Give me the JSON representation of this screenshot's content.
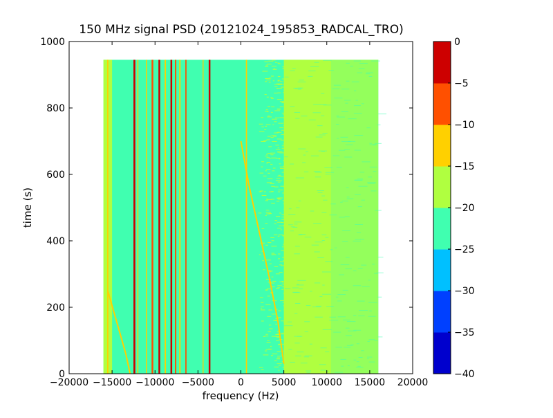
{
  "chart_data": {
    "type": "heatmap",
    "title": "150 MHz signal PSD (20121024_195853_RADCAL_TRO)",
    "xlabel": "frequency (Hz)",
    "ylabel": "time (s)",
    "xlim": [
      -20000,
      20000
    ],
    "ylim": [
      0,
      1000
    ],
    "xticks": [
      -20000,
      -15000,
      -10000,
      -5000,
      0,
      5000,
      10000,
      15000,
      20000
    ],
    "yticks": [
      0,
      200,
      400,
      600,
      800,
      1000
    ],
    "data_extent": {
      "x": [
        -16000,
        16000
      ],
      "y": [
        0,
        945
      ]
    },
    "colorbar": {
      "levels": [
        -40,
        -35,
        -30,
        -25,
        -20,
        -15,
        -10,
        -5,
        0
      ],
      "tick_labels": [
        "−40",
        "−35",
        "−30",
        "−25",
        "−20",
        "−15",
        "−10",
        "−5",
        "0"
      ],
      "colors": [
        "#0000cd",
        "#0040ff",
        "#00c0ff",
        "#40ffb0",
        "#b0ff40",
        "#ffd000",
        "#ff5000",
        "#cd0000"
      ]
    },
    "background_level_color": "#40ffb0",
    "regions": [
      {
        "name": "inner-band",
        "x": [
          -15000,
          4800
        ],
        "y": [
          0,
          945
        ],
        "level_range": [
          -25,
          -20
        ]
      },
      {
        "name": "left-edge-band",
        "x": [
          -16000,
          -15000
        ],
        "y": [
          0,
          945
        ],
        "level_range": [
          -20,
          -15
        ]
      },
      {
        "name": "speckle-band",
        "x": [
          2000,
          5500
        ],
        "y": [
          0,
          945
        ],
        "level_range": [
          -20,
          -15
        ]
      },
      {
        "name": "upper-band",
        "x": [
          5000,
          10500
        ],
        "y": [
          0,
          945
        ],
        "level_range": [
          -20,
          -15
        ]
      },
      {
        "name": "outer-band",
        "x": [
          10500,
          16000
        ],
        "y": [
          0,
          945
        ],
        "level_range": [
          -20,
          -15
        ]
      }
    ],
    "vertical_lines": [
      {
        "x": -12400,
        "level": -5,
        "width_hz": 220
      },
      {
        "x": -12000,
        "level": -15,
        "width_hz": 120
      },
      {
        "x": -11000,
        "level": -15,
        "width_hz": 120
      },
      {
        "x": -10300,
        "level": -10,
        "width_hz": 200
      },
      {
        "x": -9500,
        "level": -5,
        "width_hz": 200
      },
      {
        "x": -8800,
        "level": -15,
        "width_hz": 150
      },
      {
        "x": -8100,
        "level": -5,
        "width_hz": 200
      },
      {
        "x": -7600,
        "level": -10,
        "width_hz": 160
      },
      {
        "x": -7100,
        "level": -15,
        "width_hz": 150
      },
      {
        "x": -6400,
        "level": -10,
        "width_hz": 140
      },
      {
        "x": -4400,
        "level": -15,
        "width_hz": 100
      },
      {
        "x": -3650,
        "level": -5,
        "width_hz": 200
      },
      {
        "x": 650,
        "level": -15,
        "width_hz": 140
      },
      {
        "x": -15500,
        "level": -15,
        "width_hz": 140
      }
    ],
    "drift_traces": [
      {
        "points": [
          [
            0,
            700
          ],
          [
            1000,
            560
          ],
          [
            2200,
            420
          ],
          [
            3300,
            290
          ],
          [
            4300,
            160
          ],
          [
            5000,
            30
          ]
        ],
        "level": -15
      },
      {
        "points": [
          [
            -15500,
            250
          ],
          [
            -14500,
            160
          ],
          [
            -13400,
            60
          ],
          [
            -12900,
            0
          ]
        ],
        "level": -15
      }
    ]
  }
}
